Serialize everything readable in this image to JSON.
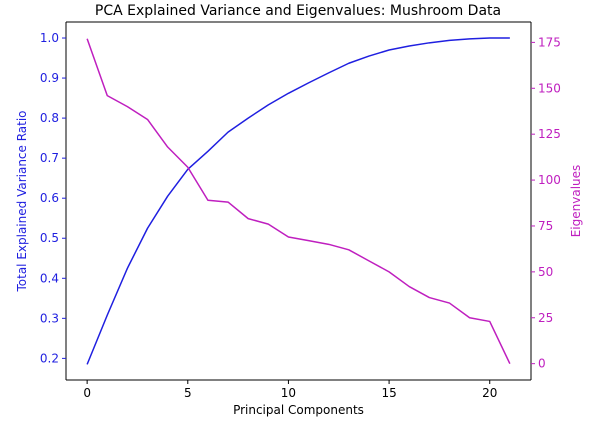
{
  "colors": {
    "variance": "#1f1fe0",
    "eigen": "#bf1fbf",
    "axis": "#000000"
  },
  "chart_data": {
    "type": "line",
    "title": "PCA Explained Variance and Eigenvalues: Mushroom Data",
    "xlabel": "Principal Components",
    "ylabel_left": "Total Explained Variance Ratio",
    "ylabel_right": "Eigenvalues",
    "xlim": [
      -1.05,
      22.05
    ],
    "ylim_left": [
      0.146,
      1.04
    ],
    "ylim_right": [
      -8.9,
      186.1
    ],
    "x_ticks": [
      0,
      5,
      10,
      15,
      20
    ],
    "y_left_ticks": [
      0.2,
      0.3,
      0.4,
      0.5,
      0.6,
      0.7,
      0.8,
      0.9,
      1.0
    ],
    "y_right_ticks": [
      0,
      25,
      50,
      75,
      100,
      125,
      150,
      175
    ],
    "x": [
      0,
      1,
      2,
      3,
      4,
      5,
      6,
      7,
      8,
      9,
      10,
      11,
      12,
      13,
      14,
      15,
      16,
      17,
      18,
      19,
      20,
      21
    ],
    "series": [
      {
        "name": "Total Explained Variance Ratio",
        "axis": "left",
        "values": [
          0.185,
          0.308,
          0.425,
          0.525,
          0.605,
          0.672,
          0.717,
          0.765,
          0.8,
          0.833,
          0.862,
          0.888,
          0.913,
          0.937,
          0.955,
          0.97,
          0.98,
          0.988,
          0.994,
          0.998,
          1.0,
          1.0
        ]
      },
      {
        "name": "Eigenvalues",
        "axis": "right",
        "values": [
          177,
          146,
          140,
          133,
          118,
          107,
          89,
          88,
          79,
          76,
          69,
          67,
          65,
          62,
          56,
          50,
          42,
          36,
          33,
          25,
          23,
          0
        ]
      }
    ]
  }
}
